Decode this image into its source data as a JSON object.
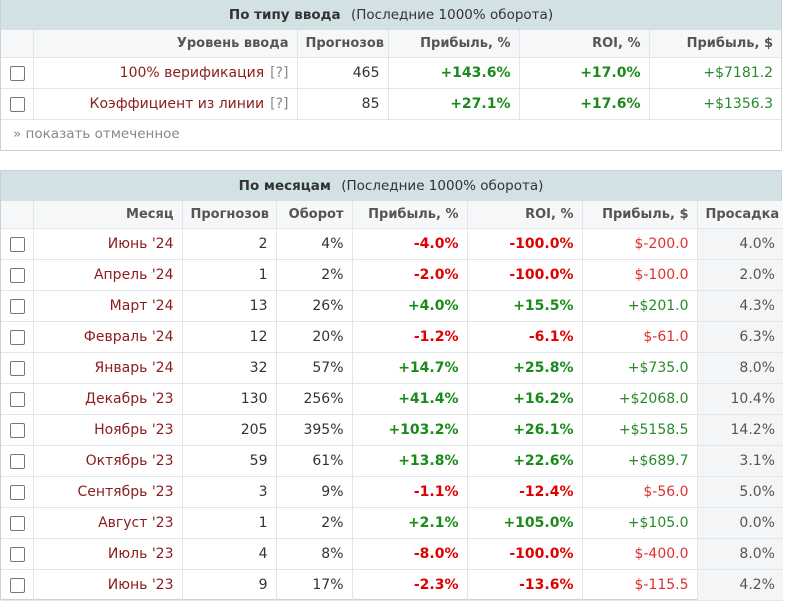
{
  "input_panel": {
    "title": "По типу ввода",
    "subtitle": "(Последние 1000% оборота)",
    "headers": [
      "Уровень ввода",
      "Прогнозов",
      "Прибыль, %",
      "ROI, %",
      "Прибыль, $"
    ],
    "rows": [
      {
        "name": "100% верификация",
        "hint": "[?]",
        "forecasts": "465",
        "profit_pct": "+143.6%",
        "roi": "+17.0%",
        "profit_usd": "+$7181.2"
      },
      {
        "name": "Коэффициент из линии",
        "hint": "[?]",
        "forecasts": "85",
        "profit_pct": "+27.1%",
        "roi": "+17.6%",
        "profit_usd": "+$1356.3"
      }
    ],
    "show_selected": "» показать отмеченное"
  },
  "month_panel": {
    "title": "По месяцам",
    "subtitle": "(Последние 1000% оборота)",
    "headers": [
      "Месяц",
      "Прогнозов",
      "Оборот",
      "Прибыль, %",
      "ROI, %",
      "Прибыль, $",
      "Просадка"
    ],
    "rows": [
      {
        "month": "Июнь '24",
        "forecasts": "2",
        "turnover": "4%",
        "profit_pct": "-4.0%",
        "roi": "-100.0%",
        "profit_usd": "$-200.0",
        "drawdown": "4.0%"
      },
      {
        "month": "Апрель '24",
        "forecasts": "1",
        "turnover": "2%",
        "profit_pct": "-2.0%",
        "roi": "-100.0%",
        "profit_usd": "$-100.0",
        "drawdown": "2.0%"
      },
      {
        "month": "Март '24",
        "forecasts": "13",
        "turnover": "26%",
        "profit_pct": "+4.0%",
        "roi": "+15.5%",
        "profit_usd": "+$201.0",
        "drawdown": "4.3%"
      },
      {
        "month": "Февраль '24",
        "forecasts": "12",
        "turnover": "20%",
        "profit_pct": "-1.2%",
        "roi": "-6.1%",
        "profit_usd": "$-61.0",
        "drawdown": "6.3%"
      },
      {
        "month": "Январь '24",
        "forecasts": "32",
        "turnover": "57%",
        "profit_pct": "+14.7%",
        "roi": "+25.8%",
        "profit_usd": "+$735.0",
        "drawdown": "8.0%"
      },
      {
        "month": "Декабрь '23",
        "forecasts": "130",
        "turnover": "256%",
        "profit_pct": "+41.4%",
        "roi": "+16.2%",
        "profit_usd": "+$2068.0",
        "drawdown": "10.4%"
      },
      {
        "month": "Ноябрь '23",
        "forecasts": "205",
        "turnover": "395%",
        "profit_pct": "+103.2%",
        "roi": "+26.1%",
        "profit_usd": "+$5158.5",
        "drawdown": "14.2%"
      },
      {
        "month": "Октябрь '23",
        "forecasts": "59",
        "turnover": "61%",
        "profit_pct": "+13.8%",
        "roi": "+22.6%",
        "profit_usd": "+$689.7",
        "drawdown": "3.1%"
      },
      {
        "month": "Сентябрь '23",
        "forecasts": "3",
        "turnover": "9%",
        "profit_pct": "-1.1%",
        "roi": "-12.4%",
        "profit_usd": "$-56.0",
        "drawdown": "5.0%"
      },
      {
        "month": "Август '23",
        "forecasts": "1",
        "turnover": "2%",
        "profit_pct": "+2.1%",
        "roi": "+105.0%",
        "profit_usd": "+$105.0",
        "drawdown": "0.0%"
      },
      {
        "month": "Июль '23",
        "forecasts": "4",
        "turnover": "8%",
        "profit_pct": "-8.0%",
        "roi": "-100.0%",
        "profit_usd": "$-400.0",
        "drawdown": "8.0%"
      },
      {
        "month": "Июнь '23",
        "forecasts": "9",
        "turnover": "17%",
        "profit_pct": "-2.3%",
        "roi": "-13.6%",
        "profit_usd": "$-115.5",
        "drawdown": "4.2%"
      }
    ]
  },
  "colors": {
    "header_bg": "#d2e1e4",
    "positive": "#1a8a1a",
    "negative": "#e00000",
    "name_link": "#8b1c1c"
  }
}
